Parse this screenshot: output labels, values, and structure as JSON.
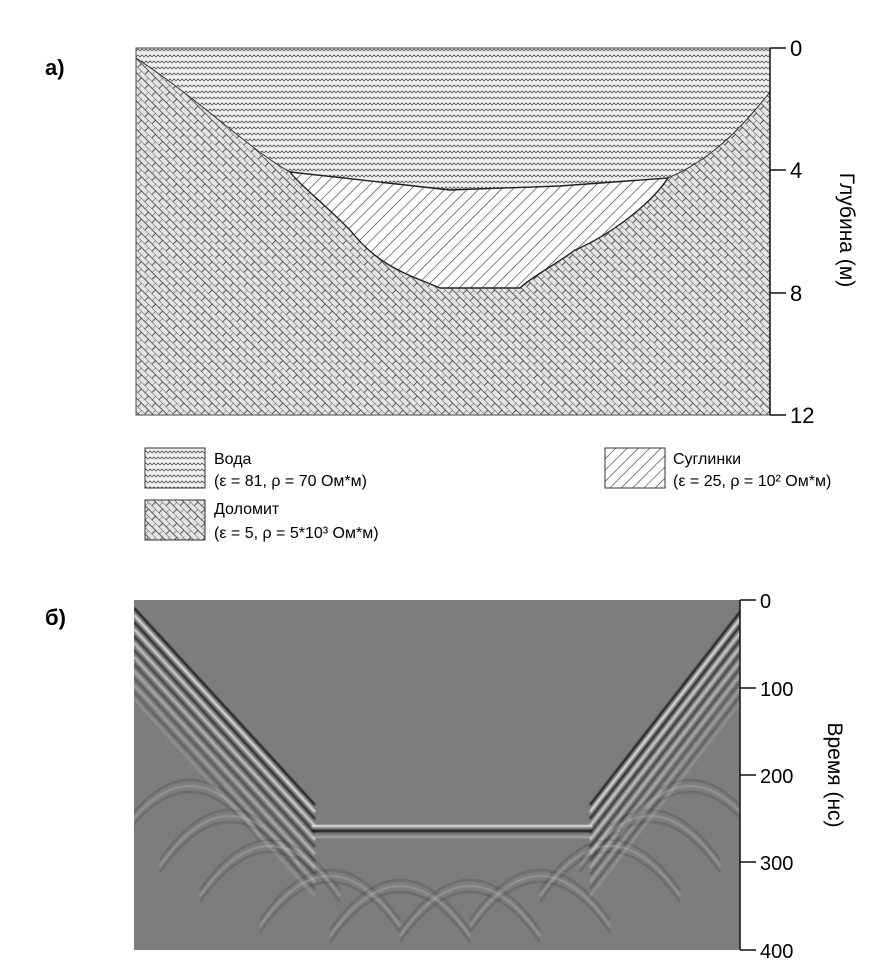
{
  "panel_a": {
    "label": "а)",
    "axis_title": "Глубина (м)",
    "ticks": [
      "0",
      "4",
      "8",
      "12"
    ],
    "layers": [
      "water",
      "dolomite",
      "loam"
    ]
  },
  "legend": {
    "water": {
      "name": "Вода",
      "params": "(ε = 81, ρ = 70 Ом*м)"
    },
    "dolomite": {
      "name": "Доломит",
      "params": "(ε = 5, ρ = 5*10³ Ом*м)"
    },
    "loam": {
      "name": "Суглинки",
      "params": "(ε = 25, ρ = 10² Ом*м)"
    }
  },
  "panel_b": {
    "label": "б)",
    "axis_title": "Время (нс)",
    "ticks": [
      "0",
      "100",
      "200",
      "300",
      "400"
    ]
  },
  "colors": {
    "water_fill": "#eeeeee",
    "dolomite_fill": "#dcdcdc",
    "radargram_bg": "#7d7d7d"
  }
}
